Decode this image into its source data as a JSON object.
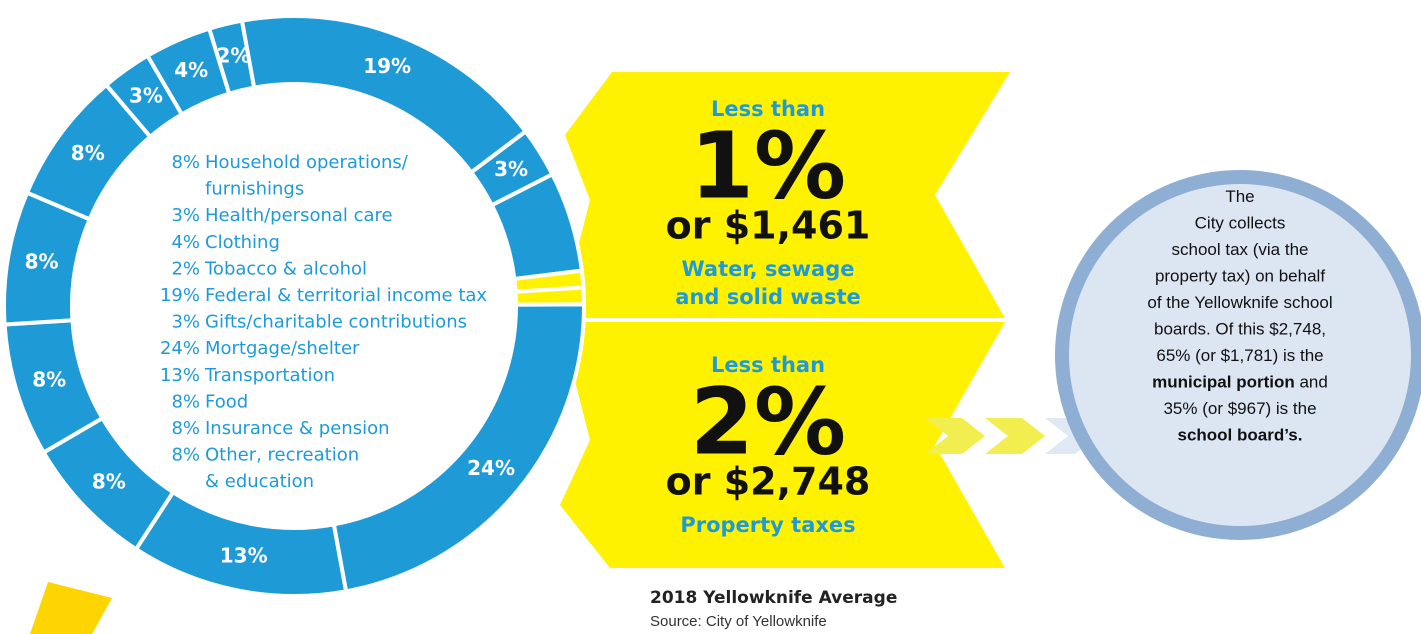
{
  "chart_data": {
    "type": "donut",
    "values": [
      2,
      19,
      3,
      6,
      1,
      1,
      24,
      13,
      8,
      8,
      8,
      8,
      3,
      4
    ],
    "value_labels": [
      "2%",
      "19%",
      "3%",
      null,
      null,
      null,
      "24%",
      "13%",
      "8%",
      "8%",
      "8%",
      "8%",
      "3%",
      "4%"
    ],
    "colors": [
      "#1e9bd7",
      "#1e9bd7",
      "#1e9bd7",
      "#1e9bd7",
      "#fff200",
      "#fff200",
      "#1e9bd7",
      "#1e9bd7",
      "#1e9bd7",
      "#1e9bd7",
      "#1e9bd7",
      "#1e9bd7",
      "#1e9bd7",
      "#1e9bd7"
    ],
    "legend": [
      {
        "percent": "8%",
        "lines": [
          "Household operations/",
          "furnishings"
        ]
      },
      {
        "percent": "3%",
        "lines": [
          "Health/personal care"
        ]
      },
      {
        "percent": "4%",
        "lines": [
          "Clothing"
        ]
      },
      {
        "percent": "2%",
        "lines": [
          "Tobacco & alcohol"
        ]
      },
      {
        "percent": "19%",
        "lines": [
          "Federal & territorial income tax"
        ]
      },
      {
        "percent": "3%",
        "lines": [
          "Gifts/charitable contributions"
        ]
      },
      {
        "percent": "24%",
        "lines": [
          "Mortgage/shelter"
        ]
      },
      {
        "percent": "13%",
        "lines": [
          "Transportation"
        ]
      },
      {
        "percent": "8%",
        "lines": [
          "Food"
        ]
      },
      {
        "percent": "8%",
        "lines": [
          "Insurance & pension"
        ]
      },
      {
        "percent": "8%",
        "lines": [
          "Other, recreation",
          "& education"
        ]
      }
    ]
  },
  "callouts": [
    {
      "prefix": "Less than",
      "percent": "1%",
      "amount": "or $1,461",
      "lines": [
        "Water, sewage",
        "and solid waste"
      ]
    },
    {
      "prefix": "Less than",
      "percent": "2%",
      "amount": "or $2,748",
      "lines": [
        "Property taxes"
      ]
    }
  ],
  "note": [
    [
      {
        "text": "The"
      }
    ],
    [
      {
        "text": "City collects"
      }
    ],
    [
      {
        "text": "school tax (via the"
      }
    ],
    [
      {
        "text": "property tax) on behalf"
      }
    ],
    [
      {
        "text": "of the Yellowknife school"
      }
    ],
    [
      {
        "text": "boards. Of this $2,748,"
      }
    ],
    [
      {
        "text": "65% (or $1,781) is the"
      }
    ],
    [
      {
        "text": "municipal portion",
        "bold": true
      },
      {
        "text": " and"
      }
    ],
    [
      {
        "text": "35% (or $967) is the"
      }
    ],
    [
      {
        "text": "school board’s.",
        "bold": true
      }
    ]
  ],
  "footer": {
    "title": "2018 Yellowknife Average",
    "source": "Source: City of Yellowknife"
  }
}
